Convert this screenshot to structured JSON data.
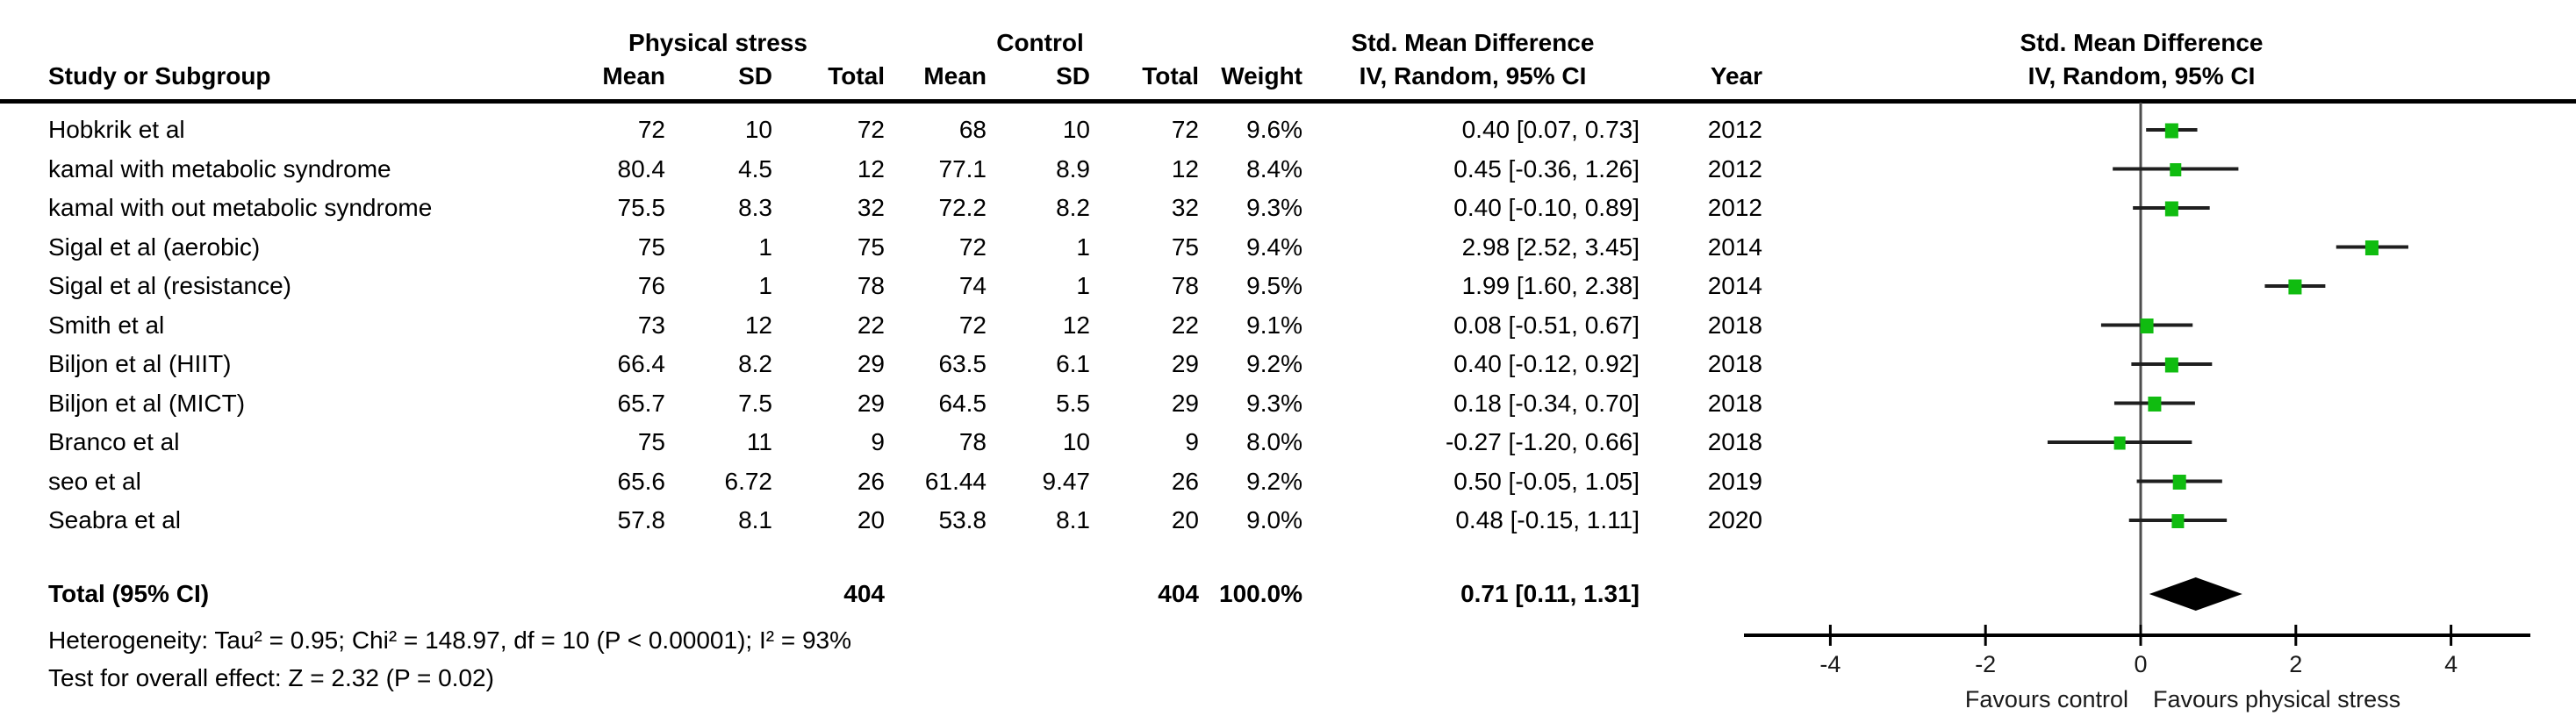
{
  "header": {
    "study_col": "Study or Subgroup",
    "group_experimental": "Physical stress",
    "group_control": "Control",
    "group_effect": "Std. Mean Difference",
    "sub_mean": "Mean",
    "sub_sd": "SD",
    "sub_total": "Total",
    "weight": "Weight",
    "effect_method": "IV, Random, 95% CI",
    "year": "Year",
    "plot_title_line1": "Std. Mean Difference",
    "plot_title_line2": "IV, Random, 95% CI"
  },
  "studies": [
    {
      "name": "Hobkrik et al",
      "mean_exp": "72",
      "sd_exp": "10",
      "total_exp": "72",
      "mean_ctl": "68",
      "sd_ctl": "10",
      "total_ctl": "72",
      "weight": "9.6%",
      "ci": "0.40 [0.07, 0.73]",
      "year": "2012"
    },
    {
      "name": "kamal with metabolic syndrome",
      "mean_exp": "80.4",
      "sd_exp": "4.5",
      "total_exp": "12",
      "mean_ctl": "77.1",
      "sd_ctl": "8.9",
      "total_ctl": "12",
      "weight": "8.4%",
      "ci": "0.45 [-0.36, 1.26]",
      "year": "2012"
    },
    {
      "name": "kamal with out metabolic syndrome",
      "mean_exp": "75.5",
      "sd_exp": "8.3",
      "total_exp": "32",
      "mean_ctl": "72.2",
      "sd_ctl": "8.2",
      "total_ctl": "32",
      "weight": "9.3%",
      "ci": "0.40 [-0.10, 0.89]",
      "year": "2012"
    },
    {
      "name": "Sigal et al (aerobic)",
      "mean_exp": "75",
      "sd_exp": "1",
      "total_exp": "75",
      "mean_ctl": "72",
      "sd_ctl": "1",
      "total_ctl": "75",
      "weight": "9.4%",
      "ci": "2.98 [2.52, 3.45]",
      "year": "2014"
    },
    {
      "name": "Sigal et al (resistance)",
      "mean_exp": "76",
      "sd_exp": "1",
      "total_exp": "78",
      "mean_ctl": "74",
      "sd_ctl": "1",
      "total_ctl": "78",
      "weight": "9.5%",
      "ci": "1.99 [1.60, 2.38]",
      "year": "2014"
    },
    {
      "name": "Smith et al",
      "mean_exp": "73",
      "sd_exp": "12",
      "total_exp": "22",
      "mean_ctl": "72",
      "sd_ctl": "12",
      "total_ctl": "22",
      "weight": "9.1%",
      "ci": "0.08 [-0.51, 0.67]",
      "year": "2018"
    },
    {
      "name": "Biljon et al (HIIT)",
      "mean_exp": "66.4",
      "sd_exp": "8.2",
      "total_exp": "29",
      "mean_ctl": "63.5",
      "sd_ctl": "6.1",
      "total_ctl": "29",
      "weight": "9.2%",
      "ci": "0.40 [-0.12, 0.92]",
      "year": "2018"
    },
    {
      "name": "Biljon et al (MICT)",
      "mean_exp": "65.7",
      "sd_exp": "7.5",
      "total_exp": "29",
      "mean_ctl": "64.5",
      "sd_ctl": "5.5",
      "total_ctl": "29",
      "weight": "9.3%",
      "ci": "0.18 [-0.34, 0.70]",
      "year": "2018"
    },
    {
      "name": "Branco et al",
      "mean_exp": "75",
      "sd_exp": "11",
      "total_exp": "9",
      "mean_ctl": "78",
      "sd_ctl": "10",
      "total_ctl": "9",
      "weight": "8.0%",
      "ci": "-0.27 [-1.20, 0.66]",
      "year": "2018"
    },
    {
      "name": "seo et al",
      "mean_exp": "65.6",
      "sd_exp": "6.72",
      "total_exp": "26",
      "mean_ctl": "61.44",
      "sd_ctl": "9.47",
      "total_ctl": "26",
      "weight": "9.2%",
      "ci": "0.50 [-0.05, 1.05]",
      "year": "2019"
    },
    {
      "name": "Seabra et al",
      "mean_exp": "57.8",
      "sd_exp": "8.1",
      "total_exp": "20",
      "mean_ctl": "53.8",
      "sd_ctl": "8.1",
      "total_ctl": "20",
      "weight": "9.0%",
      "ci": "0.48 [-0.15, 1.11]",
      "year": "2020"
    }
  ],
  "total": {
    "label": "Total (95% CI)",
    "total_exp": "404",
    "total_ctl": "404",
    "weight": "100.0%",
    "ci": "0.71 [0.11, 1.31]"
  },
  "footnotes": {
    "heterogeneity": "Heterogeneity: Tau² = 0.95; Chi² = 148.97, df = 10 (P < 0.00001); I² = 93%",
    "overall_effect": "Test for overall effect: Z = 2.32 (P = 0.02)"
  },
  "chart_data": {
    "type": "forest",
    "effect_measure": "Std. Mean Difference",
    "model": "IV, Random, 95% CI",
    "x_axis": {
      "ticks": [
        -4,
        -2,
        0,
        2,
        4
      ],
      "min": -4,
      "max": 4,
      "zero_line": 0
    },
    "favours_left": "Favours control",
    "favours_right": "Favours physical stress",
    "marker_color": "#10BC10",
    "ci_line_color": "#1f1f1f",
    "diamond_color": "#000000",
    "points": [
      {
        "name": "Hobkrik et al",
        "est": 0.4,
        "lo": 0.07,
        "hi": 0.73,
        "weight_pct": 9.6,
        "year": 2012
      },
      {
        "name": "kamal with metabolic syndrome",
        "est": 0.45,
        "lo": -0.36,
        "hi": 1.26,
        "weight_pct": 8.4,
        "year": 2012
      },
      {
        "name": "kamal with out metabolic syndrome",
        "est": 0.4,
        "lo": -0.1,
        "hi": 0.89,
        "weight_pct": 9.3,
        "year": 2012
      },
      {
        "name": "Sigal et al (aerobic)",
        "est": 2.98,
        "lo": 2.52,
        "hi": 3.45,
        "weight_pct": 9.4,
        "year": 2014
      },
      {
        "name": "Sigal et al (resistance)",
        "est": 1.99,
        "lo": 1.6,
        "hi": 2.38,
        "weight_pct": 9.5,
        "year": 2014
      },
      {
        "name": "Smith et al",
        "est": 0.08,
        "lo": -0.51,
        "hi": 0.67,
        "weight_pct": 9.1,
        "year": 2018
      },
      {
        "name": "Biljon et al (HIIT)",
        "est": 0.4,
        "lo": -0.12,
        "hi": 0.92,
        "weight_pct": 9.2,
        "year": 2018
      },
      {
        "name": "Biljon et al (MICT)",
        "est": 0.18,
        "lo": -0.34,
        "hi": 0.7,
        "weight_pct": 9.3,
        "year": 2018
      },
      {
        "name": "Branco et al",
        "est": -0.27,
        "lo": -1.2,
        "hi": 0.66,
        "weight_pct": 8.0,
        "year": 2018
      },
      {
        "name": "seo et al",
        "est": 0.5,
        "lo": -0.05,
        "hi": 1.05,
        "weight_pct": 9.2,
        "year": 2019
      },
      {
        "name": "Seabra et al",
        "est": 0.48,
        "lo": -0.15,
        "hi": 1.11,
        "weight_pct": 9.0,
        "year": 2020
      }
    ],
    "total": {
      "est": 0.71,
      "lo": 0.11,
      "hi": 1.31,
      "weight_pct": 100.0
    }
  }
}
